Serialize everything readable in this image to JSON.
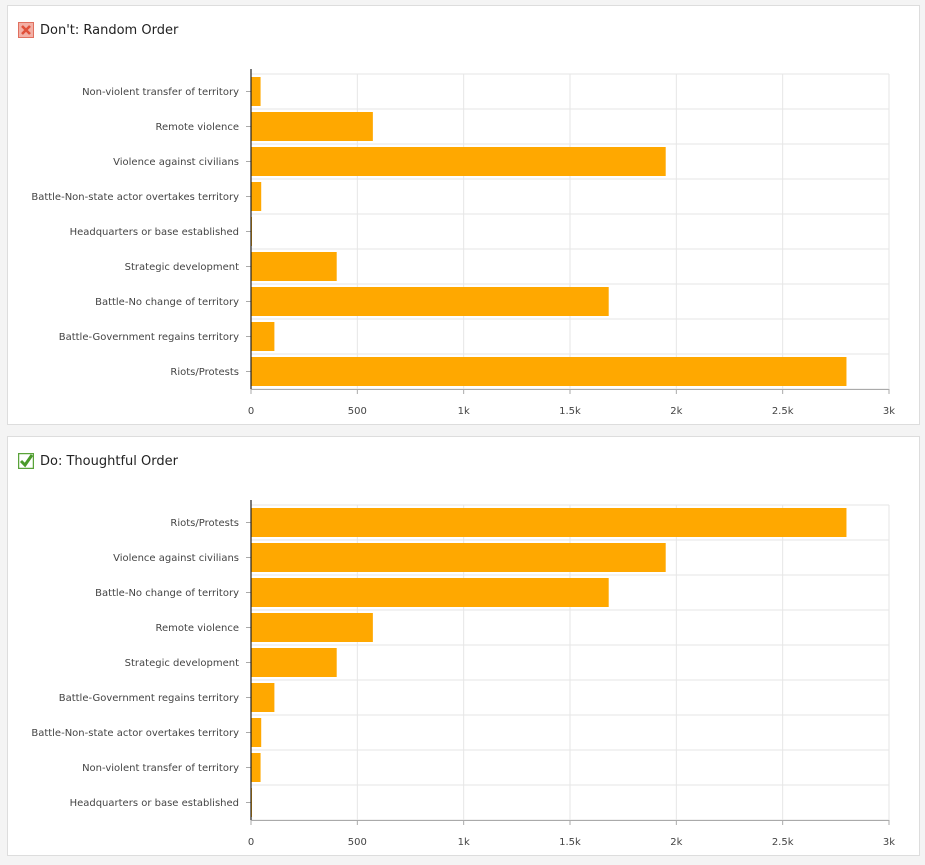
{
  "chart_data": [
    {
      "type": "bar",
      "orientation": "horizontal",
      "title": "Don't: Random Order",
      "icon": "x-box-icon",
      "categories": [
        "Non-violent transfer of territory",
        "Remote violence",
        "Violence against civilians",
        "Battle-Non-state actor overtakes territory",
        "Headquarters or base established",
        "Strategic development",
        "Battle-No change of territory",
        "Battle-Government regains territory",
        "Riots/Protests"
      ],
      "values": [
        45,
        573,
        1950,
        48,
        4,
        403,
        1682,
        110,
        2800
      ],
      "xlim": [
        0,
        3000
      ],
      "xticks": [
        "0",
        "500",
        "1k",
        "1.5k",
        "2k",
        "2.5k",
        "3k"
      ],
      "grid": true,
      "color": "#ffa800"
    },
    {
      "type": "bar",
      "orientation": "horizontal",
      "title": "Do: Thoughtful Order",
      "icon": "check-box-icon",
      "categories": [
        "Riots/Protests",
        "Violence against civilians",
        "Battle-No change of territory",
        "Remote violence",
        "Strategic development",
        "Battle-Government regains territory",
        "Battle-Non-state actor overtakes territory",
        "Non-violent transfer of territory",
        "Headquarters or base established"
      ],
      "values": [
        2800,
        1950,
        1682,
        573,
        403,
        110,
        48,
        45,
        4
      ],
      "xlim": [
        0,
        3000
      ],
      "xticks": [
        "0",
        "500",
        "1k",
        "1.5k",
        "2k",
        "2.5k",
        "3k"
      ],
      "grid": true,
      "color": "#ffa800"
    }
  ]
}
